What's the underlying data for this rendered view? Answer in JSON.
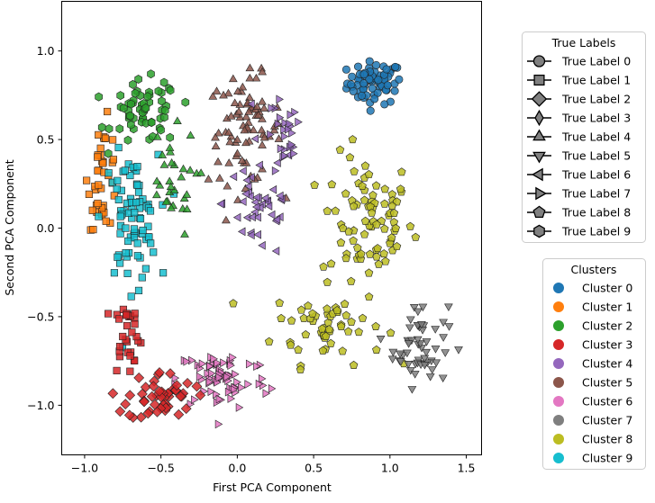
{
  "chart_data": {
    "type": "scatter",
    "xlabel": "First PCA Component",
    "ylabel": "Second PCA Component",
    "xlim": [
      -1.15,
      1.6
    ],
    "ylim": [
      -1.28,
      1.28
    ],
    "xticks": [
      "−1.0",
      "−0.5",
      "0.0",
      "0.5",
      "1.0",
      "1.5"
    ],
    "xtick_values": [
      -1.0,
      -0.5,
      0.0,
      0.5,
      1.0,
      1.5
    ],
    "yticks": [
      "−1.0",
      "−0.5",
      "0.0",
      "0.5",
      "1.0"
    ],
    "ytick_values": [
      -1.0,
      -0.5,
      0.0,
      0.5,
      1.0
    ],
    "grid": false,
    "true_labels_legend": {
      "title": "True Labels",
      "placement": "upper-right-outside",
      "entries": [
        {
          "label": "True Label 0",
          "marker": "circle"
        },
        {
          "label": "True Label 1",
          "marker": "square"
        },
        {
          "label": "True Label 2",
          "marker": "diamond"
        },
        {
          "label": "True Label 3",
          "marker": "thin-diamond"
        },
        {
          "label": "True Label 4",
          "marker": "triangle-up"
        },
        {
          "label": "True Label 5",
          "marker": "triangle-down"
        },
        {
          "label": "True Label 6",
          "marker": "triangle-left"
        },
        {
          "label": "True Label 7",
          "marker": "triangle-right"
        },
        {
          "label": "True Label 8",
          "marker": "pentagon"
        },
        {
          "label": "True Label 9",
          "marker": "hexagon"
        }
      ]
    },
    "clusters_legend": {
      "title": "Clusters",
      "placement": "lower-right-outside",
      "entries": [
        {
          "label": "Cluster 0",
          "color": "#1f77b4"
        },
        {
          "label": "Cluster 1",
          "color": "#ff7f0e"
        },
        {
          "label": "Cluster 2",
          "color": "#2ca02c"
        },
        {
          "label": "Cluster 3",
          "color": "#d62728"
        },
        {
          "label": "Cluster 4",
          "color": "#9467bd"
        },
        {
          "label": "Cluster 5",
          "color": "#8c564b"
        },
        {
          "label": "Cluster 6",
          "color": "#e377c2"
        },
        {
          "label": "Cluster 7",
          "color": "#7f7f7f"
        },
        {
          "label": "Cluster 8",
          "color": "#bcbd22"
        },
        {
          "label": "Cluster 9",
          "color": "#17becf"
        }
      ]
    },
    "series": [
      {
        "cluster": 0,
        "true_label": 0,
        "center": [
          0.9,
          0.82
        ],
        "spread": [
          0.15,
          0.1
        ],
        "count": 70
      },
      {
        "cluster": 8,
        "true_label": 8,
        "center": [
          0.85,
          0.05
        ],
        "spread": [
          0.25,
          0.3
        ],
        "count": 80
      },
      {
        "cluster": 8,
        "true_label": 8,
        "center": [
          0.6,
          -0.55
        ],
        "spread": [
          0.3,
          0.18
        ],
        "count": 55
      },
      {
        "cluster": 7,
        "true_label": 5,
        "center": [
          1.2,
          -0.65
        ],
        "spread": [
          0.15,
          0.2
        ],
        "count": 55
      },
      {
        "cluster": 5,
        "true_label": 4,
        "center": [
          0.05,
          0.55
        ],
        "spread": [
          0.2,
          0.25
        ],
        "count": 80
      },
      {
        "cluster": 4,
        "true_label": 6,
        "center": [
          0.15,
          0.15
        ],
        "spread": [
          0.2,
          0.28
        ],
        "count": 45
      },
      {
        "cluster": 4,
        "true_label": 7,
        "center": [
          0.3,
          0.5
        ],
        "spread": [
          0.1,
          0.2
        ],
        "count": 25
      },
      {
        "cluster": 2,
        "true_label": 9,
        "center": [
          -0.6,
          0.65
        ],
        "spread": [
          0.18,
          0.15
        ],
        "count": 60
      },
      {
        "cluster": 1,
        "true_label": 1,
        "center": [
          -0.88,
          0.3
        ],
        "spread": [
          0.08,
          0.25
        ],
        "count": 40
      },
      {
        "cluster": 9,
        "true_label": 1,
        "center": [
          -0.7,
          0.05
        ],
        "spread": [
          0.15,
          0.3
        ],
        "count": 80
      },
      {
        "cluster": 6,
        "true_label": 7,
        "center": [
          -0.1,
          -0.85
        ],
        "spread": [
          0.25,
          0.15
        ],
        "count": 75
      },
      {
        "cluster": 3,
        "true_label": 2,
        "center": [
          -0.5,
          -0.95
        ],
        "spread": [
          0.18,
          0.12
        ],
        "count": 50
      },
      {
        "cluster": 3,
        "true_label": 1,
        "center": [
          -0.72,
          -0.6
        ],
        "spread": [
          0.08,
          0.18
        ],
        "count": 30
      },
      {
        "cluster": 2,
        "true_label": 4,
        "center": [
          -0.45,
          0.25
        ],
        "spread": [
          0.15,
          0.25
        ],
        "count": 30
      }
    ]
  }
}
